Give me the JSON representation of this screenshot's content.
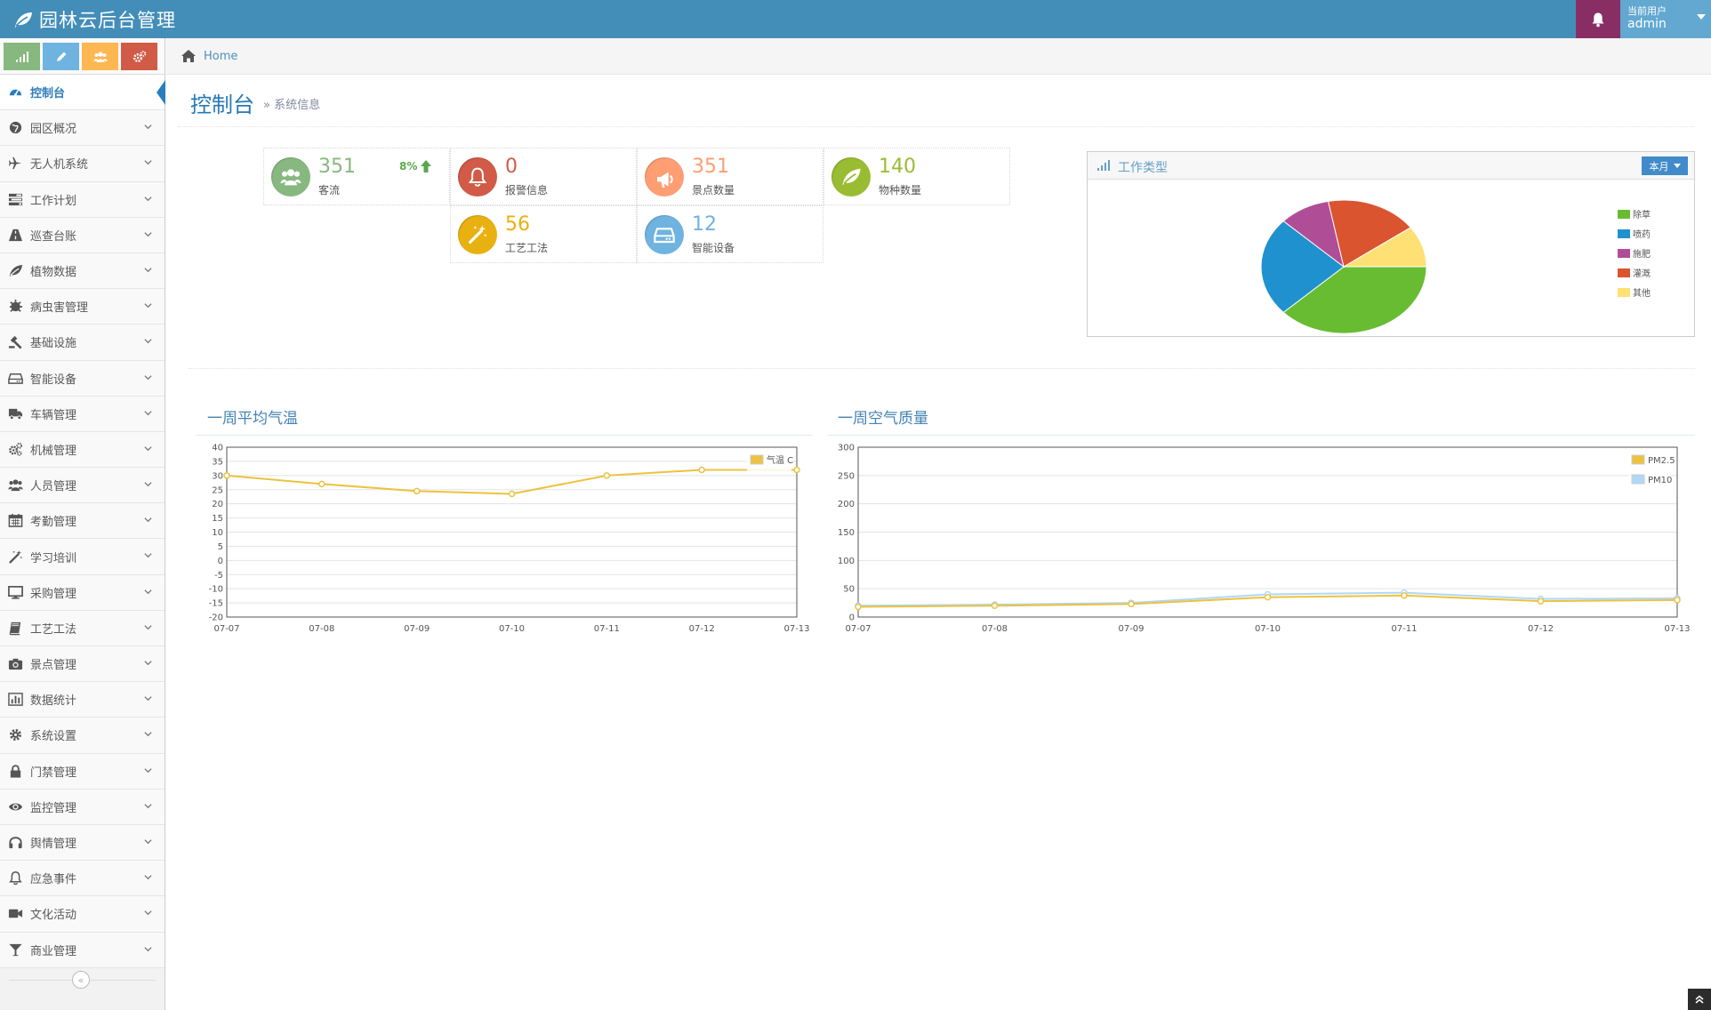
{
  "navbar": {
    "brand": "园林云后台管理",
    "user_caption": "当前用户",
    "user_name": "admin"
  },
  "colors": {
    "navbar": "#438eb9",
    "bell": "#892e65",
    "user": "#62a8d1",
    "shortcut_green": "#87b87f",
    "shortcut_blue": "#6fb3e0",
    "shortcut_orange": "#ffb752",
    "shortcut_red": "#d15b47"
  },
  "sidebar": {
    "items": [
      {
        "label": "控制台",
        "icon": "tachometer-icon",
        "active": true
      },
      {
        "label": "园区概况",
        "icon": "globe-icon"
      },
      {
        "label": "无人机系统",
        "icon": "plane-icon"
      },
      {
        "label": "工作计划",
        "icon": "tasks-icon"
      },
      {
        "label": "巡查台账",
        "icon": "road-icon"
      },
      {
        "label": "植物数据",
        "icon": "leaf-icon"
      },
      {
        "label": "病虫害管理",
        "icon": "bug-icon"
      },
      {
        "label": "基础设施",
        "icon": "gavel-icon"
      },
      {
        "label": "智能设备",
        "icon": "hdd-icon"
      },
      {
        "label": "车辆管理",
        "icon": "truck-icon"
      },
      {
        "label": "机械管理",
        "icon": "cogs-icon"
      },
      {
        "label": "人员管理",
        "icon": "group-icon"
      },
      {
        "label": "考勤管理",
        "icon": "calendar-icon"
      },
      {
        "label": "学习培训",
        "icon": "magic-icon"
      },
      {
        "label": "采购管理",
        "icon": "desktop-icon"
      },
      {
        "label": "工艺工法",
        "icon": "book-icon"
      },
      {
        "label": "景点管理",
        "icon": "camera-icon"
      },
      {
        "label": "数据统计",
        "icon": "bar-chart-icon"
      },
      {
        "label": "系统设置",
        "icon": "cog-icon"
      },
      {
        "label": "门禁管理",
        "icon": "lock-icon"
      },
      {
        "label": "监控管理",
        "icon": "eye-icon"
      },
      {
        "label": "舆情管理",
        "icon": "headphones-icon"
      },
      {
        "label": "应急事件",
        "icon": "bell-icon"
      },
      {
        "label": "文化活动",
        "icon": "video-icon"
      },
      {
        "label": "商业管理",
        "icon": "glass-icon"
      }
    ],
    "collapse_glyph": "«"
  },
  "breadcrumb": {
    "home": "Home"
  },
  "page": {
    "title": "控制台",
    "subtitle": "» 系统信息"
  },
  "infoboxes": [
    {
      "value": "351",
      "label": "客流",
      "color": "#87b87f",
      "icon": "group-icon",
      "trend": "8%"
    },
    {
      "value": "0",
      "label": "报警信息",
      "color": "#d15b47",
      "icon": "bell-icon"
    },
    {
      "value": "351",
      "label": "景点数量",
      "color": "#fe9e72",
      "icon": "bullhorn-icon"
    },
    {
      "value": "140",
      "label": "物种数量",
      "color": "#9abc32",
      "icon": "leaf-icon"
    },
    {
      "value": "56",
      "label": "工艺工法",
      "color": "#e8b110",
      "icon": "magic-icon"
    },
    {
      "value": "12",
      "label": "智能设备",
      "color": "#6fb3e0",
      "icon": "hdd-icon"
    }
  ],
  "pie_widget": {
    "title": "工作类型",
    "button": "本月"
  },
  "chart_data": [
    {
      "type": "pie",
      "title": "工作类型",
      "legend_position": "right",
      "labels": [
        "除草",
        "喷药",
        "施肥",
        "灌溉",
        "其他"
      ],
      "values": [
        38,
        24,
        10,
        18,
        10
      ],
      "colors": [
        "#68bc31",
        "#2091cf",
        "#af4e96",
        "#da5430",
        "#fee074"
      ]
    },
    {
      "type": "line",
      "title": "一周平均气温",
      "x": [
        "07-07",
        "07-08",
        "07-09",
        "07-10",
        "07-11",
        "07-12",
        "07-13"
      ],
      "ylim": [
        -20,
        40
      ],
      "yticks": [
        40,
        35,
        30,
        25,
        20,
        15,
        10,
        5,
        0,
        -5,
        -10,
        -15,
        -20
      ],
      "grid": true,
      "legend_position": "top-right",
      "series": [
        {
          "name": "气温 C",
          "values": [
            30,
            27,
            24.5,
            23.5,
            30,
            32,
            32
          ],
          "color": "#edc240"
        }
      ]
    },
    {
      "type": "line",
      "title": "一周空气质量",
      "x": [
        "07-07",
        "07-08",
        "07-09",
        "07-10",
        "07-11",
        "07-12",
        "07-13"
      ],
      "ylim": [
        0,
        300
      ],
      "yticks": [
        300,
        250,
        200,
        150,
        100,
        50,
        0
      ],
      "grid": true,
      "legend_position": "top-right",
      "series": [
        {
          "name": "PM2.5",
          "values": [
            18,
            20,
            23,
            35,
            38,
            28,
            30
          ],
          "color": "#edc240"
        },
        {
          "name": "PM10",
          "values": [
            20,
            22,
            25,
            40,
            43,
            32,
            33
          ],
          "color": "#afd8f8"
        }
      ]
    }
  ]
}
